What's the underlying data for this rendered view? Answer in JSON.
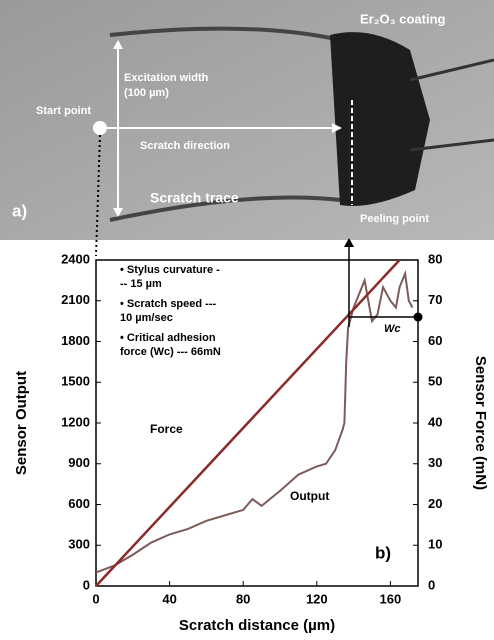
{
  "image": {
    "coating": "Er₂O₃ coating",
    "width_label": [
      "Excitation width",
      "(100 µm)"
    ],
    "start": "Start point",
    "direction": "Scratch direction",
    "trace": "Scratch trace",
    "peeling": "Peeling point",
    "panel": "a)"
  },
  "chart_data": {
    "type": "line",
    "panel": "b)",
    "x_label": "Scratch distance (µm)",
    "y_label": "Sensor Output",
    "y2_label": "Sensor Force (mN)",
    "xlim": [
      0,
      175
    ],
    "xticks": [
      0,
      40,
      80,
      120,
      160
    ],
    "ylim": [
      0,
      2400
    ],
    "yticks": [
      0,
      300,
      600,
      900,
      1200,
      1500,
      1800,
      2100,
      2400
    ],
    "y2lim": [
      0,
      80
    ],
    "y2ticks": [
      0,
      10,
      20,
      30,
      40,
      50,
      60,
      70,
      80
    ],
    "notes": [
      [
        "• Stylus curvature -",
        "-- 15 µm"
      ],
      [
        "• Scratch speed ---",
        "10 µm/sec"
      ],
      [
        "• Critical adhesion",
        "force (Wc) --- 66mN"
      ]
    ],
    "marker": {
      "label": "Wc",
      "value": 66
    },
    "series": [
      {
        "name": "Output",
        "color": "#7d5b5b",
        "x": [
          0,
          10,
          20,
          30,
          40,
          50,
          60,
          70,
          80,
          85,
          90,
          100,
          110,
          120,
          125,
          130,
          134,
          135,
          136,
          137,
          140,
          143,
          146,
          148,
          150,
          153,
          156,
          158,
          160,
          163,
          165,
          168,
          170,
          172
        ],
        "values": [
          100,
          150,
          230,
          320,
          380,
          420,
          480,
          520,
          560,
          640,
          590,
          700,
          820,
          880,
          900,
          1000,
          1150,
          1200,
          1650,
          1900,
          2050,
          2150,
          2250,
          2100,
          1950,
          2000,
          2200,
          2150,
          2100,
          2050,
          2200,
          2300,
          2100,
          2050
        ]
      },
      {
        "name": "Force",
        "color": "#8b2a2a",
        "axis": "y2",
        "x": [
          0,
          165
        ],
        "values": [
          0,
          80
        ]
      }
    ]
  }
}
